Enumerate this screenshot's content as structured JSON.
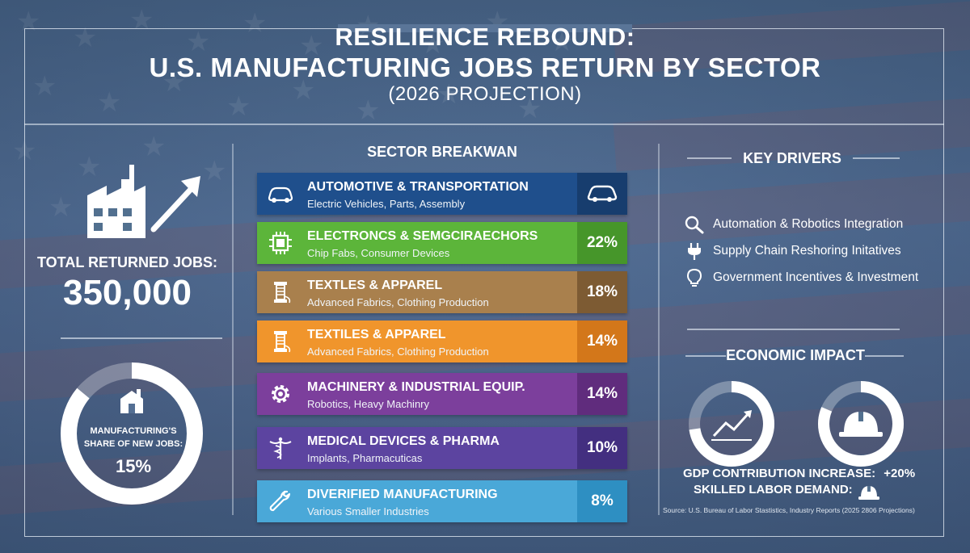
{
  "header": {
    "title_line1": "RESILIENCE REBOUND:",
    "title_line2": "U.S. MANUFACTURING JOBS RETURN BY SECTOR",
    "title_line3": "(2026 PROJECTION)"
  },
  "summary": {
    "total_label": "TOTAL RETURNED JOBS:",
    "total_value": "350,000",
    "share_label_line1": "MANUFACTURING'S",
    "share_label_line2": "SHARE OF NEW JOBS:",
    "share_value": "15%"
  },
  "sectors": {
    "heading": "SECTOR BREAKWAN",
    "items": [
      {
        "name": "AUTOMOTIVE & TRANSPORTATION",
        "sub": "Electric Vehicles, Parts, Assembly",
        "pct": "",
        "icon": "car-icon",
        "color": "#1f4f8c",
        "pct_color": "#173d6e"
      },
      {
        "name": "ELECTRONCS & SEMGCIRAECHORS",
        "sub": "Chip Fabs, Consumer Devices",
        "pct": "22%",
        "icon": "chip-icon",
        "color": "#5cb53a",
        "pct_color": "#46962a"
      },
      {
        "name": "TEXTLES & APPAREL",
        "sub": "Advanced Fabrics, Clothing Production",
        "pct": "18%",
        "icon": "thread-spool-icon",
        "color": "#a9804d",
        "pct_color": "#7d5b33"
      },
      {
        "name": "TEXTILES & APPAREL",
        "sub": "Advanced Fabrics, Clothing Production",
        "pct": "14%",
        "icon": "thread-spool-icon",
        "color": "#f0952c",
        "pct_color": "#d3771a"
      },
      {
        "name": "MACHINERY & INDUSTRIAL EQUIP.",
        "sub": "Robotics, Heavy Machinry",
        "pct": "14%",
        "icon": "gear-icon",
        "color": "#7c3f9c",
        "pct_color": "#602c7d"
      },
      {
        "name": "MEDICAL DEVICES & PHARMA",
        "sub": "Implants, Pharmacuticas",
        "pct": "10%",
        "icon": "caduceus-icon",
        "color": "#5c44a0",
        "pct_color": "#432f80"
      },
      {
        "name": "DIVERIFIED MANUFACTURING",
        "sub": "Various Smaller Industries",
        "pct": "8%",
        "icon": "wrench-icon",
        "color": "#4aa8d8",
        "pct_color": "#2e8fc2"
      }
    ]
  },
  "drivers": {
    "heading": "KEY DRIVERS",
    "items": [
      {
        "text": "Automation & Robotics Integration",
        "icon": "magnifier-icon"
      },
      {
        "text": "Supply Chain Reshoring Initatives",
        "icon": "plug-icon"
      },
      {
        "text": "Government Incentives & Investment",
        "icon": "lightbulb-icon"
      }
    ]
  },
  "impact": {
    "heading": "ECONOMIC IMPACT",
    "gdp_label": "GDP CONTRIBUTION INCREASE:",
    "gdp_value": "+20%",
    "labor_label": "SKILLED LABOR DEMAND:"
  },
  "source": "Source: U.S. Bureau of Labor Stastistics, Industry Reports (2025 2806 Projections)",
  "colors": {
    "background": "#51698f",
    "frame": "#ebf2fa"
  }
}
